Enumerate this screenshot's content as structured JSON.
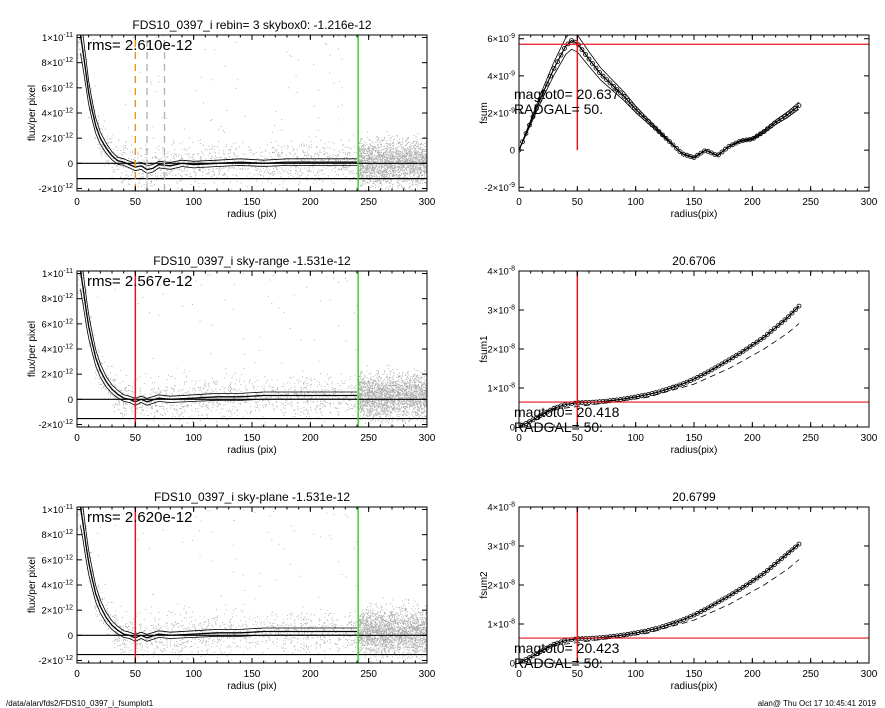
{
  "footer": {
    "path": "/data/alan/fds2/FDS10_0397_i_fsumplot1",
    "stamp": "alan@  Thu Oct 17 10:45:41 2019"
  },
  "colors": {
    "scatter": "#a8a8a8",
    "profile": "#000000",
    "red": "#e8161b",
    "green": "#39d035",
    "orange": "#f0901e",
    "gray_dash": "#b4b4b4"
  },
  "chart_data": [
    {
      "type": "scatter",
      "title": "FDS10_0397_i rebin= 3    skybox0: -1.216e-12",
      "annotation": "rms= 2.610e-12",
      "xlabel": "radius (pix)",
      "ylabel": "flux/per pixel",
      "xlim": [
        0,
        300
      ],
      "ylim": [
        -2.2e-12,
        1.02e-11
      ],
      "xticks": [
        0,
        50,
        100,
        150,
        200,
        250,
        300
      ],
      "yticks": [
        {
          "v": -2e-12,
          "m": "-2",
          "e": "-12"
        },
        {
          "v": 0,
          "m": "0",
          "e": ""
        },
        {
          "v": 2e-12,
          "m": "2",
          "e": "-12"
        },
        {
          "v": 4e-12,
          "m": "4",
          "e": "-12"
        },
        {
          "v": 6e-12,
          "m": "6",
          "e": "-12"
        },
        {
          "v": 8e-12,
          "m": "8",
          "e": "-12"
        },
        {
          "v": 1e-11,
          "m": "1",
          "e": "-11"
        }
      ],
      "profile": [
        [
          3,
          1.02e-11
        ],
        [
          5,
          9e-12
        ],
        [
          8,
          7e-12
        ],
        [
          10,
          5.6e-12
        ],
        [
          13,
          4.2e-12
        ],
        [
          16,
          3e-12
        ],
        [
          20,
          2e-12
        ],
        [
          25,
          1.2e-12
        ],
        [
          30,
          6e-13
        ],
        [
          35,
          2e-13
        ],
        [
          40,
          1e-13
        ],
        [
          45,
          -1e-13
        ],
        [
          50,
          -3e-13
        ],
        [
          55,
          -2e-13
        ],
        [
          60,
          -5e-13
        ],
        [
          65,
          -4e-13
        ],
        [
          70,
          -1e-13
        ],
        [
          80,
          -2e-13
        ],
        [
          90,
          0
        ],
        [
          100,
          -1e-13
        ],
        [
          120,
          0
        ],
        [
          140,
          1e-13
        ],
        [
          160,
          0
        ],
        [
          180,
          1e-13
        ],
        [
          200,
          1e-13
        ],
        [
          220,
          1e-13
        ],
        [
          240,
          1e-13
        ]
      ],
      "hlines": [
        {
          "y": 0,
          "color": "black"
        },
        {
          "y": -1.216e-12,
          "color": "black"
        }
      ],
      "vlines": [
        {
          "x": 50,
          "color": "orange",
          "dash": true
        },
        {
          "x": 60,
          "color": "gray",
          "dash": true
        },
        {
          "x": 75,
          "color": "gray",
          "dash": true
        },
        {
          "x": 241,
          "color": "green"
        }
      ]
    },
    {
      "type": "line",
      "title": "",
      "annotation": "",
      "label_lines": [
        "magtot0=  20.637",
        "RADGAL=     50."
      ],
      "xlabel": "radius(pix)",
      "ylabel": "fsum",
      "xlim": [
        0,
        300
      ],
      "ylim": [
        -2.2e-09,
        6.2e-09
      ],
      "xticks": [
        0,
        50,
        100,
        150,
        200,
        250,
        300
      ],
      "yticks": [
        {
          "v": -2e-09,
          "m": "-2",
          "e": "-9"
        },
        {
          "v": 0,
          "m": "0",
          "e": ""
        },
        {
          "v": 2e-09,
          "m": "2",
          "e": "-9"
        },
        {
          "v": 4e-09,
          "m": "4",
          "e": "-9"
        },
        {
          "v": 6e-09,
          "m": "6",
          "e": "-9"
        }
      ],
      "series": [
        {
          "points": [
            [
              0,
              0
            ],
            [
              10,
              1.5e-09
            ],
            [
              20,
              3e-09
            ],
            [
              30,
              4.4e-09
            ],
            [
              40,
              5.6e-09
            ],
            [
              45,
              5.9e-09
            ],
            [
              50,
              5.75e-09
            ],
            [
              60,
              4.9e-09
            ],
            [
              70,
              4.1e-09
            ],
            [
              80,
              3.5e-09
            ],
            [
              90,
              2.9e-09
            ],
            [
              100,
              2.2e-09
            ],
            [
              110,
              1.6e-09
            ],
            [
              120,
              1e-09
            ],
            [
              130,
              4e-10
            ],
            [
              140,
              -2e-10
            ],
            [
              150,
              -4e-10
            ],
            [
              160,
              0
            ],
            [
              170,
              -3e-10
            ],
            [
              180,
              2e-10
            ],
            [
              190,
              5e-10
            ],
            [
              200,
              6e-10
            ],
            [
              210,
              1e-09
            ],
            [
              220,
              1.5e-09
            ],
            [
              230,
              1.9e-09
            ],
            [
              240,
              2.4e-09
            ]
          ]
        }
      ],
      "hlines": [
        {
          "y": 5.7e-09,
          "color": "red"
        }
      ],
      "vlines": [
        {
          "x": 50,
          "color": "red",
          "ymin": 0
        }
      ]
    },
    {
      "type": "scatter",
      "title": "FDS10_0397_i sky-range -1.531e-12",
      "annotation": "rms= 2.567e-12",
      "xlabel": "radius (pix)",
      "ylabel": "flux/per pixel",
      "xlim": [
        0,
        300
      ],
      "ylim": [
        -2.2e-12,
        1.02e-11
      ],
      "xticks": [
        0,
        50,
        100,
        150,
        200,
        250,
        300
      ],
      "yticks": [
        {
          "v": -2e-12,
          "m": "-2",
          "e": "-12"
        },
        {
          "v": 0,
          "m": "0",
          "e": ""
        },
        {
          "v": 2e-12,
          "m": "2",
          "e": "-12"
        },
        {
          "v": 4e-12,
          "m": "4",
          "e": "-12"
        },
        {
          "v": 6e-12,
          "m": "6",
          "e": "-12"
        },
        {
          "v": 8e-12,
          "m": "8",
          "e": "-12"
        },
        {
          "v": 1e-11,
          "m": "1",
          "e": "-11"
        }
      ],
      "profile": [
        [
          3,
          1.02e-11
        ],
        [
          5,
          9e-12
        ],
        [
          8,
          7e-12
        ],
        [
          10,
          5.8e-12
        ],
        [
          13,
          4.5e-12
        ],
        [
          16,
          3.3e-12
        ],
        [
          20,
          2.3e-12
        ],
        [
          25,
          1.4e-12
        ],
        [
          30,
          8e-13
        ],
        [
          35,
          4e-13
        ],
        [
          40,
          1e-13
        ],
        [
          45,
          0
        ],
        [
          50,
          -2e-13
        ],
        [
          55,
          0
        ],
        [
          60,
          -2e-13
        ],
        [
          70,
          1e-13
        ],
        [
          80,
          0
        ],
        [
          100,
          1e-13
        ],
        [
          120,
          2e-13
        ],
        [
          140,
          2e-13
        ],
        [
          160,
          3e-13
        ],
        [
          180,
          3e-13
        ],
        [
          200,
          3e-13
        ],
        [
          220,
          3e-13
        ],
        [
          240,
          3e-13
        ]
      ],
      "hlines": [
        {
          "y": 0,
          "color": "black"
        },
        {
          "y": -1.531e-12,
          "color": "black"
        }
      ],
      "vlines": [
        {
          "x": 50,
          "color": "red"
        },
        {
          "x": 241,
          "color": "green"
        }
      ]
    },
    {
      "type": "line",
      "title": "20.6706",
      "annotation": "",
      "label_lines": [
        "magtot0=  20.418",
        "RADGAL=     50."
      ],
      "xlabel": "radius(pix)",
      "ylabel": "fsum1",
      "xlim": [
        0,
        300
      ],
      "ylim": [
        0,
        4e-08
      ],
      "xticks": [
        0,
        50,
        100,
        150,
        200,
        250,
        300
      ],
      "yticks": [
        {
          "v": 0,
          "m": "0",
          "e": ""
        },
        {
          "v": 1e-08,
          "m": "1",
          "e": "-8"
        },
        {
          "v": 2e-08,
          "m": "2",
          "e": "-8"
        },
        {
          "v": 3e-08,
          "m": "3",
          "e": "-8"
        },
        {
          "v": 4e-08,
          "m": "4",
          "e": "-8"
        }
      ],
      "series": [
        {
          "points": [
            [
              0,
              0
            ],
            [
              10,
              1.5e-09
            ],
            [
              20,
              3.2e-09
            ],
            [
              30,
              4.8e-09
            ],
            [
              40,
              5.8e-09
            ],
            [
              50,
              6.2e-09
            ],
            [
              60,
              6.3e-09
            ],
            [
              70,
              6.5e-09
            ],
            [
              80,
              6.8e-09
            ],
            [
              90,
              7.2e-09
            ],
            [
              100,
              7.7e-09
            ],
            [
              110,
              8.3e-09
            ],
            [
              120,
              9e-09
            ],
            [
              130,
              1e-08
            ],
            [
              140,
              1.1e-08
            ],
            [
              150,
              1.23e-08
            ],
            [
              160,
              1.38e-08
            ],
            [
              170,
              1.55e-08
            ],
            [
              180,
              1.72e-08
            ],
            [
              190,
              1.9e-08
            ],
            [
              200,
              2.1e-08
            ],
            [
              210,
              2.3e-08
            ],
            [
              220,
              2.55e-08
            ],
            [
              230,
              2.8e-08
            ],
            [
              240,
              3.1e-08
            ]
          ]
        }
      ],
      "dashed": [
        [
          30,
          4.5e-09
        ],
        [
          70,
          6e-09
        ],
        [
          110,
          7.6e-09
        ],
        [
          150,
          1.1e-08
        ],
        [
          180,
          1.5e-08
        ],
        [
          210,
          2e-08
        ],
        [
          230,
          2.4e-08
        ],
        [
          240,
          2.65e-08
        ]
      ],
      "hlines": [
        {
          "y": 6.4e-09,
          "color": "red"
        }
      ],
      "vlines": [
        {
          "x": 50,
          "color": "red"
        }
      ]
    },
    {
      "type": "scatter",
      "title": "FDS10_0397_i sky-plane -1.531e-12",
      "annotation": "rms= 2.620e-12",
      "xlabel": "radius (pix)",
      "ylabel": "flux/per pixel",
      "xlim": [
        0,
        300
      ],
      "ylim": [
        -2.2e-12,
        1.02e-11
      ],
      "xticks": [
        0,
        50,
        100,
        150,
        200,
        250,
        300
      ],
      "yticks": [
        {
          "v": -2e-12,
          "m": "-2",
          "e": "-12"
        },
        {
          "v": 0,
          "m": "0",
          "e": ""
        },
        {
          "v": 2e-12,
          "m": "2",
          "e": "-12"
        },
        {
          "v": 4e-12,
          "m": "4",
          "e": "-12"
        },
        {
          "v": 6e-12,
          "m": "6",
          "e": "-12"
        },
        {
          "v": 8e-12,
          "m": "8",
          "e": "-12"
        },
        {
          "v": 1e-11,
          "m": "1",
          "e": "-11"
        }
      ],
      "profile": [
        [
          3,
          1.02e-11
        ],
        [
          5,
          9e-12
        ],
        [
          8,
          7e-12
        ],
        [
          10,
          5.8e-12
        ],
        [
          13,
          4.5e-12
        ],
        [
          16,
          3.3e-12
        ],
        [
          20,
          2.3e-12
        ],
        [
          25,
          1.4e-12
        ],
        [
          30,
          8e-13
        ],
        [
          35,
          4e-13
        ],
        [
          40,
          1e-13
        ],
        [
          45,
          0
        ],
        [
          50,
          -2e-13
        ],
        [
          55,
          0
        ],
        [
          60,
          -2e-13
        ],
        [
          70,
          1e-13
        ],
        [
          80,
          0
        ],
        [
          100,
          1e-13
        ],
        [
          120,
          2e-13
        ],
        [
          140,
          2e-13
        ],
        [
          160,
          3e-13
        ],
        [
          180,
          3e-13
        ],
        [
          200,
          3e-13
        ],
        [
          220,
          3e-13
        ],
        [
          240,
          3e-13
        ]
      ],
      "hlines": [
        {
          "y": 0,
          "color": "black"
        },
        {
          "y": -1.531e-12,
          "color": "black"
        }
      ],
      "vlines": [
        {
          "x": 50,
          "color": "red"
        },
        {
          "x": 241,
          "color": "green"
        }
      ]
    },
    {
      "type": "line",
      "title": "20.6799",
      "annotation": "",
      "label_lines": [
        "magtot0=  20.423",
        "RADGAL=     50."
      ],
      "xlabel": "radius(pix)",
      "ylabel": "fsum2",
      "xlim": [
        0,
        300
      ],
      "ylim": [
        0,
        4e-08
      ],
      "xticks": [
        0,
        50,
        100,
        150,
        200,
        250,
        300
      ],
      "yticks": [
        {
          "v": 0,
          "m": "0",
          "e": ""
        },
        {
          "v": 1e-08,
          "m": "1",
          "e": "-8"
        },
        {
          "v": 2e-08,
          "m": "2",
          "e": "-8"
        },
        {
          "v": 3e-08,
          "m": "3",
          "e": "-8"
        },
        {
          "v": 4e-08,
          "m": "4",
          "e": "-8"
        }
      ],
      "series": [
        {
          "points": [
            [
              0,
              0
            ],
            [
              10,
              1.5e-09
            ],
            [
              20,
              3.2e-09
            ],
            [
              30,
              4.8e-09
            ],
            [
              40,
              5.8e-09
            ],
            [
              50,
              6.2e-09
            ],
            [
              60,
              6.3e-09
            ],
            [
              70,
              6.5e-09
            ],
            [
              80,
              6.8e-09
            ],
            [
              90,
              7.2e-09
            ],
            [
              100,
              7.7e-09
            ],
            [
              110,
              8.3e-09
            ],
            [
              120,
              9e-09
            ],
            [
              130,
              1e-08
            ],
            [
              140,
              1.1e-08
            ],
            [
              150,
              1.23e-08
            ],
            [
              160,
              1.38e-08
            ],
            [
              170,
              1.55e-08
            ],
            [
              180,
              1.72e-08
            ],
            [
              190,
              1.9e-08
            ],
            [
              200,
              2.1e-08
            ],
            [
              210,
              2.3e-08
            ],
            [
              220,
              2.55e-08
            ],
            [
              230,
              2.8e-08
            ],
            [
              240,
              3.05e-08
            ]
          ]
        }
      ],
      "dashed": [
        [
          30,
          4.5e-09
        ],
        [
          70,
          6e-09
        ],
        [
          110,
          7.6e-09
        ],
        [
          150,
          1.1e-08
        ],
        [
          180,
          1.5e-08
        ],
        [
          210,
          2e-08
        ],
        [
          230,
          2.4e-08
        ],
        [
          240,
          2.65e-08
        ]
      ],
      "hlines": [
        {
          "y": 6.4e-09,
          "color": "red"
        }
      ],
      "vlines": [
        {
          "x": 50,
          "color": "red"
        }
      ]
    }
  ]
}
